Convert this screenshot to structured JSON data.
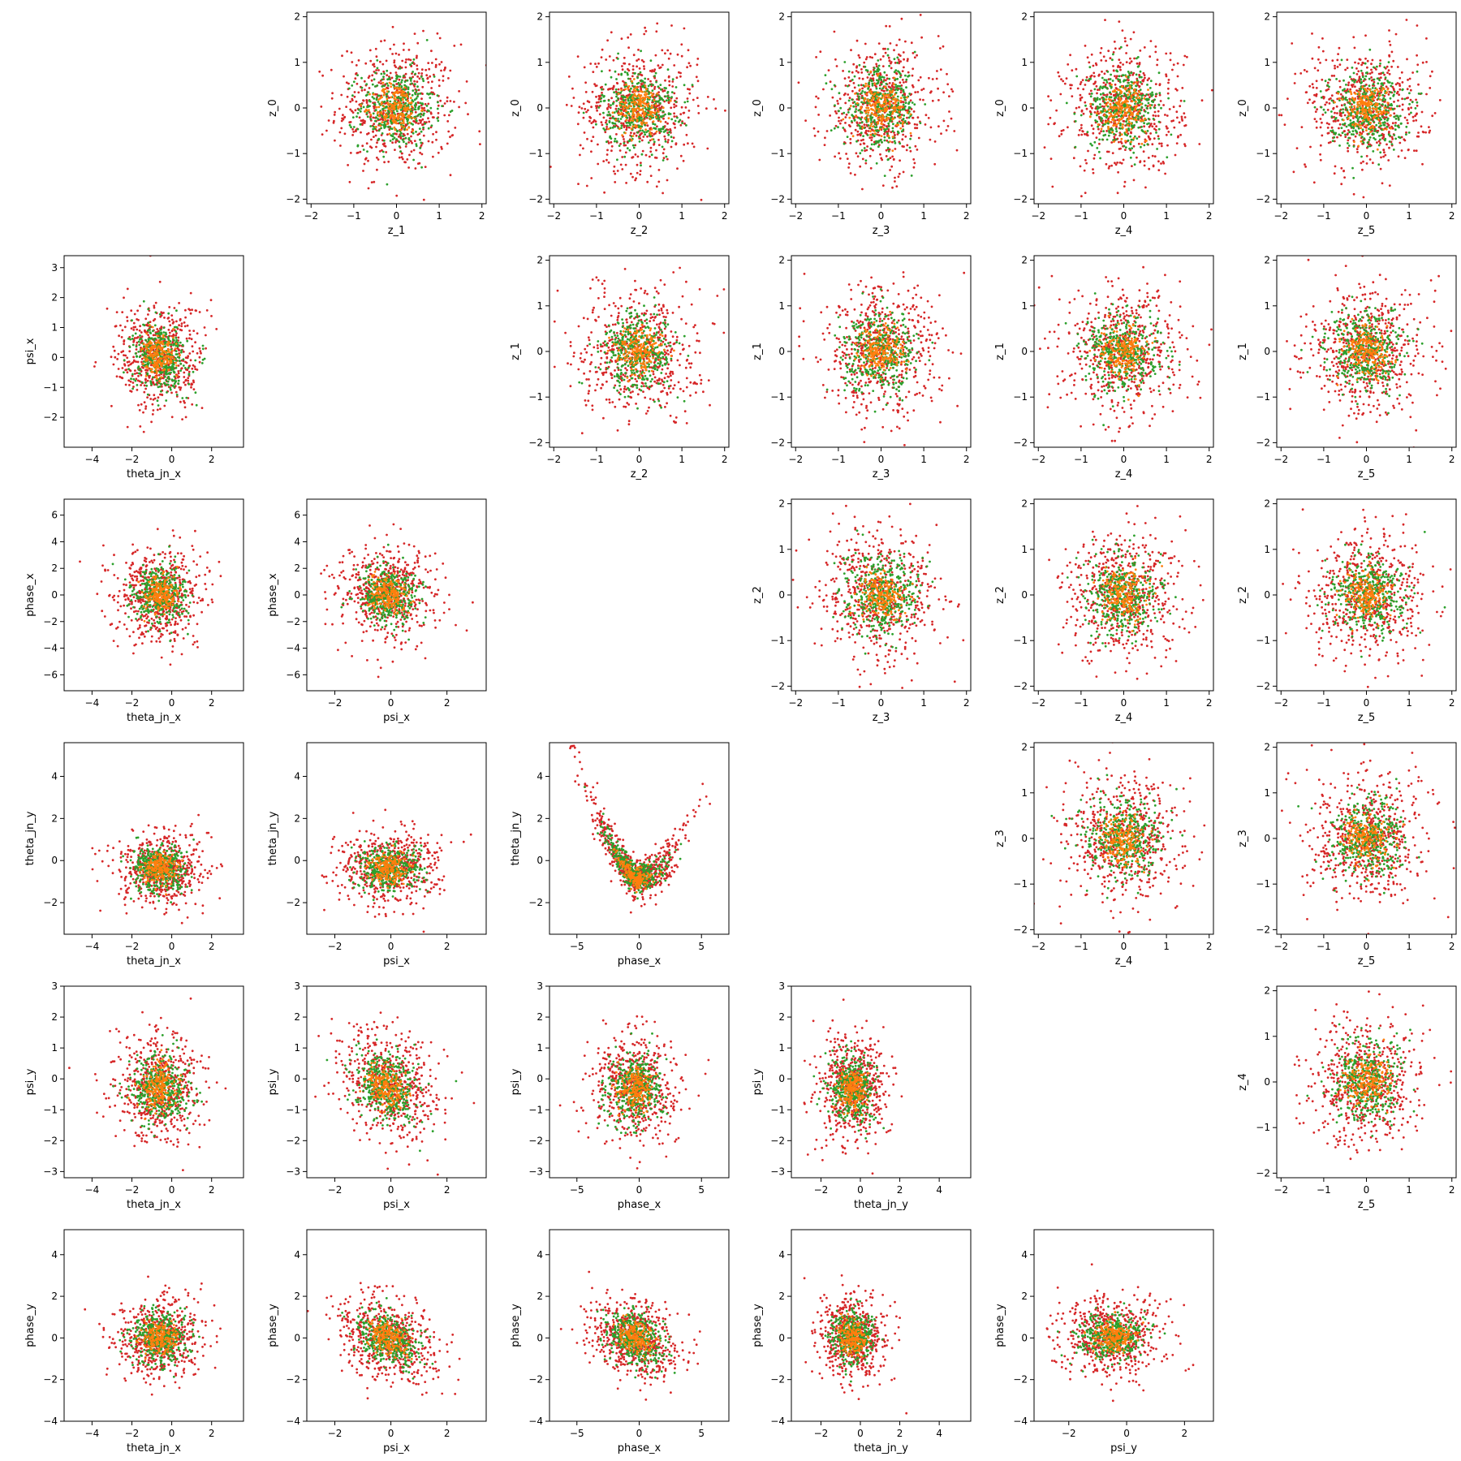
{
  "chart_data": {
    "type": "scatter",
    "layout": "pairplot-6x6",
    "colors": {
      "red": "#d62728",
      "green": "#2ca02c",
      "orange": "#ff7f0e"
    },
    "grid": false,
    "legend": "none",
    "variables": {
      "z_0": {
        "lim": [
          -2.1,
          2.1
        ],
        "ticks": [
          "-2",
          "-1",
          "0",
          "1",
          "2"
        ]
      },
      "z_1": {
        "lim": [
          -2.1,
          2.1
        ],
        "ticks": [
          "-2",
          "-1",
          "0",
          "1",
          "2"
        ]
      },
      "z_2": {
        "lim": [
          -2.1,
          2.1
        ],
        "ticks": [
          "-2",
          "-1",
          "0",
          "1",
          "2"
        ]
      },
      "z_3": {
        "lim": [
          -2.1,
          2.1
        ],
        "ticks": [
          "-2",
          "-1",
          "0",
          "1",
          "2"
        ]
      },
      "z_4": {
        "lim": [
          -2.1,
          2.1
        ],
        "ticks": [
          "-2",
          "-1",
          "0",
          "1",
          "2"
        ]
      },
      "z_5": {
        "lim": [
          -2.1,
          2.1
        ],
        "ticks": [
          "-2",
          "-1",
          "0",
          "1",
          "2"
        ]
      },
      "theta_jn_x": {
        "lim": [
          -5.4,
          3.6
        ],
        "ticks": [
          "-4",
          "-2",
          "0",
          "2"
        ]
      },
      "psi_x": {
        "lim": [
          -3.0,
          3.4
        ],
        "ticks": [
          "-2",
          "0",
          "2"
        ]
      },
      "phase_x": {
        "lim": [
          -7.2,
          7.2
        ],
        "ticks": [
          "-5",
          "0",
          "5"
        ]
      },
      "theta_jn_y": {
        "lim": [
          -3.5,
          5.6
        ],
        "ticks": [
          "-2",
          "0",
          "2",
          "4"
        ]
      },
      "psi_y": {
        "lim": [
          -3.2,
          3.0
        ],
        "ticks": [
          "-2",
          "0",
          "2"
        ]
      },
      "phase_y_as_y": {
        "lim": [
          -4.0,
          5.2
        ],
        "ticks": [
          "-4",
          "-2",
          "0",
          "2",
          "4"
        ]
      },
      "psi_x_as_y": {
        "lim": [
          -3.0,
          3.4
        ],
        "ticks": [
          "-2",
          "-1",
          "0",
          "1",
          "2",
          "3"
        ]
      },
      "phase_x_as_y": {
        "lim": [
          -7.2,
          7.2
        ],
        "ticks": [
          "-6",
          "-4",
          "-2",
          "0",
          "2",
          "4",
          "6"
        ]
      },
      "theta_jn_y_as_y": {
        "lim": [
          -3.5,
          5.6
        ],
        "ticks": [
          "-2",
          "0",
          "2",
          "4"
        ]
      },
      "psi_y_as_y": {
        "lim": [
          -3.2,
          3.0
        ],
        "ticks": [
          "-3",
          "-2",
          "-1",
          "0",
          "1",
          "2",
          "3"
        ]
      }
    },
    "panels": [
      {
        "row": 0,
        "col": 1,
        "xlabel": "z_1",
        "ylabel": "z_0",
        "xvar": "z_1",
        "yvar": "z_0",
        "shape": "iso",
        "sx": 0.7,
        "sy": 0.7
      },
      {
        "row": 0,
        "col": 2,
        "xlabel": "z_2",
        "ylabel": "z_0",
        "xvar": "z_2",
        "yvar": "z_0",
        "shape": "iso",
        "sx": 0.7,
        "sy": 0.7
      },
      {
        "row": 0,
        "col": 3,
        "xlabel": "z_3",
        "ylabel": "z_0",
        "xvar": "z_3",
        "yvar": "z_0",
        "shape": "iso",
        "sx": 0.7,
        "sy": 0.7
      },
      {
        "row": 0,
        "col": 4,
        "xlabel": "z_4",
        "ylabel": "z_0",
        "xvar": "z_4",
        "yvar": "z_0",
        "shape": "iso",
        "sx": 0.7,
        "sy": 0.7
      },
      {
        "row": 0,
        "col": 5,
        "xlabel": "z_5",
        "ylabel": "z_0",
        "xvar": "z_5",
        "yvar": "z_0",
        "shape": "iso",
        "sx": 0.7,
        "sy": 0.7
      },
      {
        "row": 1,
        "col": 0,
        "xlabel": "theta_jn_x",
        "ylabel": "psi_x",
        "xvar": "theta_jn_x",
        "yvar": "psi_x_as_y",
        "shape": "iso",
        "cx": -0.6,
        "sx": 1.1,
        "sy": 0.9
      },
      {
        "row": 1,
        "col": 2,
        "xlabel": "z_2",
        "ylabel": "z_1",
        "xvar": "z_2",
        "yvar": "z_1",
        "shape": "iso",
        "sx": 0.7,
        "sy": 0.7
      },
      {
        "row": 1,
        "col": 3,
        "xlabel": "z_3",
        "ylabel": "z_1",
        "xvar": "z_3",
        "yvar": "z_1",
        "shape": "iso",
        "sx": 0.7,
        "sy": 0.7
      },
      {
        "row": 1,
        "col": 4,
        "xlabel": "z_4",
        "ylabel": "z_1",
        "xvar": "z_4",
        "yvar": "z_1",
        "shape": "iso",
        "sx": 0.7,
        "sy": 0.7
      },
      {
        "row": 1,
        "col": 5,
        "xlabel": "z_5",
        "ylabel": "z_1",
        "xvar": "z_5",
        "yvar": "z_1",
        "shape": "iso",
        "sx": 0.7,
        "sy": 0.7
      },
      {
        "row": 2,
        "col": 0,
        "xlabel": "theta_jn_x",
        "ylabel": "phase_x",
        "xvar": "theta_jn_x",
        "yvar": "phase_x_as_y",
        "shape": "iso",
        "cx": -0.6,
        "sx": 1.1,
        "sy": 1.8
      },
      {
        "row": 2,
        "col": 1,
        "xlabel": "psi_x",
        "ylabel": "phase_x",
        "xvar": "psi_x",
        "yvar": "phase_x_as_y",
        "shape": "iso",
        "cx": -0.1,
        "sx": 0.9,
        "sy": 1.8
      },
      {
        "row": 2,
        "col": 3,
        "xlabel": "z_3",
        "ylabel": "z_2",
        "xvar": "z_3",
        "yvar": "z_2",
        "shape": "iso",
        "sx": 0.7,
        "sy": 0.7
      },
      {
        "row": 2,
        "col": 4,
        "xlabel": "z_4",
        "ylabel": "z_2",
        "xvar": "z_4",
        "yvar": "z_2",
        "shape": "iso",
        "sx": 0.7,
        "sy": 0.7
      },
      {
        "row": 2,
        "col": 5,
        "xlabel": "z_5",
        "ylabel": "z_2",
        "xvar": "z_5",
        "yvar": "z_2",
        "shape": "iso",
        "sx": 0.7,
        "sy": 0.7
      },
      {
        "row": 3,
        "col": 0,
        "xlabel": "theta_jn_x",
        "ylabel": "theta_jn_y",
        "xvar": "theta_jn_x",
        "yvar": "theta_jn_y_as_y",
        "shape": "iso",
        "cx": -0.6,
        "cy": -0.4,
        "sx": 1.1,
        "sy": 0.9
      },
      {
        "row": 3,
        "col": 1,
        "xlabel": "psi_x",
        "ylabel": "theta_jn_y",
        "xvar": "psi_x",
        "yvar": "theta_jn_y_as_y",
        "shape": "iso",
        "cx": -0.1,
        "cy": -0.4,
        "sx": 0.9,
        "sy": 0.9
      },
      {
        "row": 3,
        "col": 2,
        "xlabel": "phase_x",
        "ylabel": "theta_jn_y",
        "xvar": "phase_x",
        "yvar": "theta_jn_y_as_y",
        "shape": "banana"
      },
      {
        "row": 3,
        "col": 4,
        "xlabel": "z_4",
        "ylabel": "z_3",
        "xvar": "z_4",
        "yvar": "z_3",
        "shape": "iso",
        "sx": 0.7,
        "sy": 0.7
      },
      {
        "row": 3,
        "col": 5,
        "xlabel": "z_5",
        "ylabel": "z_3",
        "xvar": "z_5",
        "yvar": "z_3",
        "shape": "iso",
        "sx": 0.7,
        "sy": 0.7
      },
      {
        "row": 4,
        "col": 0,
        "xlabel": "theta_jn_x",
        "ylabel": "psi_y",
        "xvar": "theta_jn_x",
        "yvar": "psi_y_as_y",
        "shape": "iso",
        "cx": -0.6,
        "cy": -0.3,
        "sx": 1.1,
        "sy": 0.9
      },
      {
        "row": 4,
        "col": 1,
        "xlabel": "psi_x",
        "ylabel": "psi_y",
        "xvar": "psi_x",
        "yvar": "psi_y_as_y",
        "shape": "iso",
        "cx": -0.1,
        "cy": -0.3,
        "sx": 0.9,
        "sy": 0.9,
        "rho": -0.25
      },
      {
        "row": 4,
        "col": 2,
        "xlabel": "phase_x",
        "ylabel": "psi_y",
        "xvar": "phase_x",
        "yvar": "psi_y_as_y",
        "shape": "iso",
        "cx": -0.3,
        "cy": -0.3,
        "sx": 1.8,
        "sy": 0.9
      },
      {
        "row": 4,
        "col": 3,
        "xlabel": "theta_jn_y",
        "ylabel": "psi_y",
        "xvar": "theta_jn_y",
        "yvar": "psi_y_as_y",
        "shape": "iso",
        "cx": -0.4,
        "cy": -0.3,
        "sx": 0.9,
        "sy": 0.9
      },
      {
        "row": 4,
        "col": 5,
        "xlabel": "z_5",
        "ylabel": "z_4",
        "xvar": "z_5",
        "yvar": "z_4",
        "shape": "iso",
        "sx": 0.7,
        "sy": 0.7
      },
      {
        "row": 5,
        "col": 0,
        "xlabel": "theta_jn_x",
        "ylabel": "phase_y",
        "xvar": "theta_jn_x",
        "yvar": "phase_y_as_y",
        "shape": "iso",
        "cx": -0.6,
        "sx": 1.1,
        "sy": 1.0
      },
      {
        "row": 5,
        "col": 1,
        "xlabel": "psi_x",
        "ylabel": "phase_y",
        "xvar": "psi_x",
        "yvar": "phase_y_as_y",
        "shape": "iso",
        "cx": -0.1,
        "sx": 0.9,
        "sy": 1.0,
        "rho": -0.35
      },
      {
        "row": 5,
        "col": 2,
        "xlabel": "phase_x",
        "ylabel": "phase_y",
        "xvar": "phase_x",
        "yvar": "phase_y_as_y",
        "shape": "iso",
        "cx": -0.3,
        "sx": 1.8,
        "sy": 1.0,
        "rho": -0.3
      },
      {
        "row": 5,
        "col": 3,
        "xlabel": "theta_jn_y",
        "ylabel": "phase_y",
        "xvar": "theta_jn_y",
        "yvar": "phase_y_as_y",
        "shape": "iso",
        "cx": -0.4,
        "sx": 0.9,
        "sy": 1.0
      },
      {
        "row": 5,
        "col": 4,
        "xlabel": "psi_y",
        "ylabel": "phase_y",
        "xvar": "psi_y",
        "yvar": "phase_y_as_y",
        "shape": "iso",
        "cx": -0.5,
        "sx": 0.9,
        "sy": 0.9
      }
    ]
  }
}
